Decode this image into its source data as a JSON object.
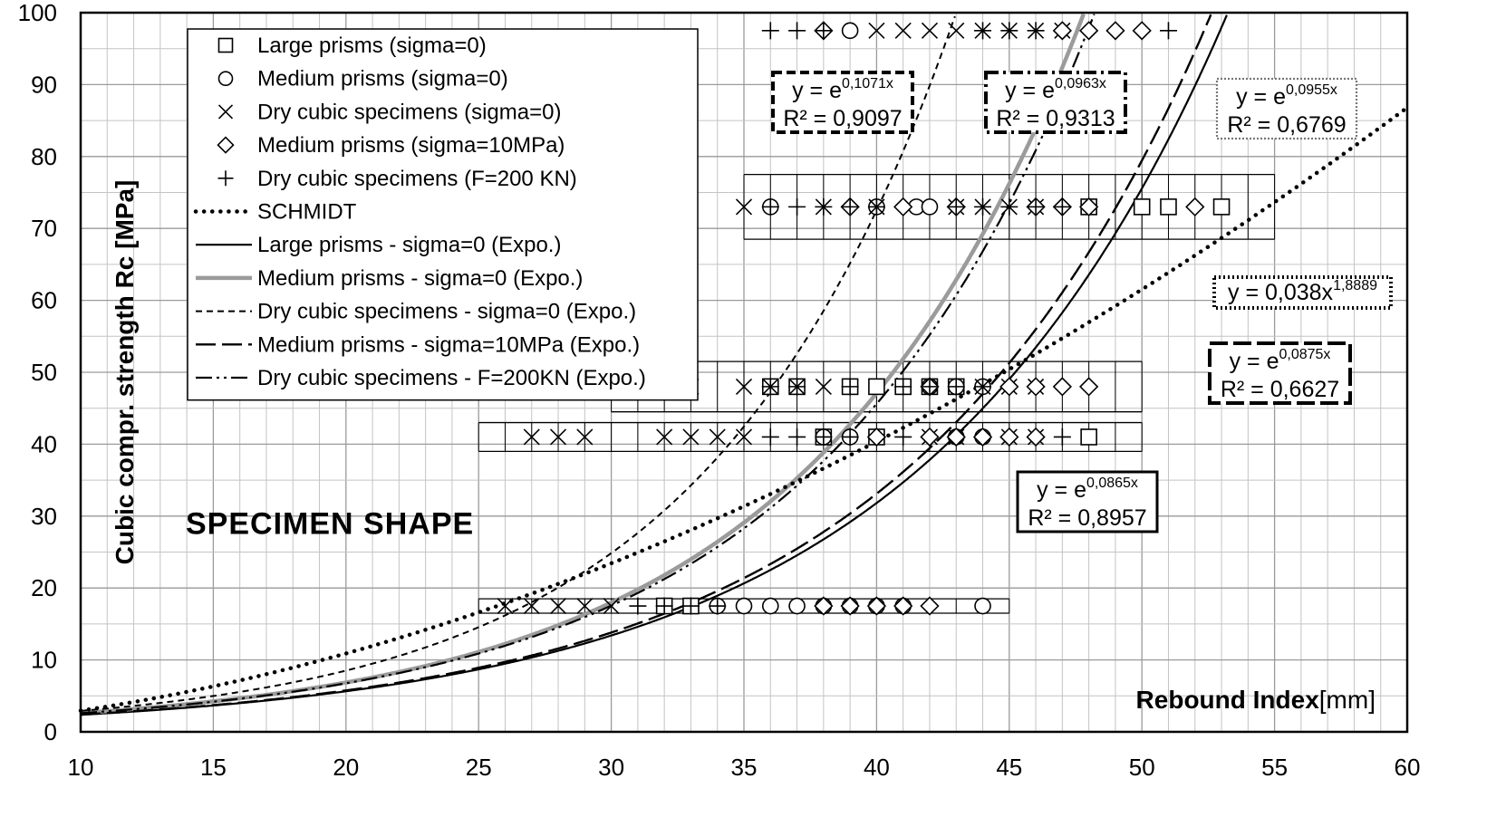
{
  "chart_data": {
    "type": "scatter",
    "title": "",
    "annotation_label": "SPECIMEN  SHAPE",
    "xlabel_bold": "Rebound Index",
    "xlabel_unit": "[mm]",
    "ylabel": "Cubic compr. strength Rc [MPa]",
    "xlim": [
      10,
      60
    ],
    "ylim": [
      0,
      100
    ],
    "x_ticks": [
      10,
      15,
      20,
      25,
      30,
      35,
      40,
      45,
      50,
      55,
      60
    ],
    "y_ticks": [
      0,
      10,
      20,
      30,
      40,
      50,
      60,
      70,
      80,
      90,
      100
    ],
    "x_minor_step": 1,
    "y_minor_step": 5,
    "grid": true,
    "legend_position": "top-left",
    "legend": [
      {
        "label": "Large prisms (sigma=0)",
        "kind": "marker",
        "marker": "square"
      },
      {
        "label": "Medium prisms (sigma=0)",
        "kind": "marker",
        "marker": "circle"
      },
      {
        "label": "Dry cubic specimens (sigma=0)",
        "kind": "marker",
        "marker": "x"
      },
      {
        "label": "Medium prisms (sigma=10MPa)",
        "kind": "marker",
        "marker": "diamond"
      },
      {
        "label": "Dry cubic specimens (F=200 KN)",
        "kind": "marker",
        "marker": "plus"
      },
      {
        "label": "SCHMIDT",
        "kind": "line",
        "style": "dotted"
      },
      {
        "label": "Large prisms - sigma=0 (Expo.)",
        "kind": "line",
        "style": "solid"
      },
      {
        "label": "Medium prisms - sigma=0 (Expo.)",
        "kind": "line",
        "style": "gray"
      },
      {
        "label": "Dry cubic specimens - sigma=0 (Expo.)",
        "kind": "line",
        "style": "short-dash"
      },
      {
        "label": "Medium prisms - sigma=10MPa (Expo.)",
        "kind": "line",
        "style": "long-dash"
      },
      {
        "label": "Dry cubic specimens - F=200KN (Expo.)",
        "kind": "line",
        "style": "dash-dot-dot"
      }
    ],
    "fits": [
      {
        "series": "Large prisms - sigma=0 (Expo.)",
        "kind": "exp",
        "k": 0.0865,
        "style": "solid"
      },
      {
        "series": "Medium prisms - sigma=0 (Expo.)",
        "kind": "exp",
        "k": 0.0963,
        "style": "gray"
      },
      {
        "series": "Dry cubic specimens - sigma=0 (Expo.)",
        "kind": "exp",
        "k": 0.1071,
        "style": "short-dash"
      },
      {
        "series": "Medium prisms - sigma=10MPa (Expo.)",
        "kind": "exp",
        "k": 0.0875,
        "style": "long-dash"
      },
      {
        "series": "Dry cubic specimens - F=200KN (Expo.)",
        "kind": "exp",
        "k": 0.0955,
        "style": "dash-dot-dot"
      },
      {
        "series": "SCHMIDT",
        "kind": "power",
        "a": 0.038,
        "b": 1.8889,
        "style": "dotted"
      }
    ],
    "equation_boxes": [
      {
        "base": "y = e",
        "exp": "0,1071x",
        "r2": "R² = 0,9097",
        "border": "dashed-heavy"
      },
      {
        "base": "y = e",
        "exp": "0,0963x",
        "r2": "R² = 0,9313",
        "border": "dashdot-heavy"
      },
      {
        "base": "y = e",
        "exp": "0,0955x",
        "r2": "R² = 0,6769",
        "border": "dotted-gray"
      },
      {
        "base": "y = 0,038x",
        "exp": "1,8889",
        "r2": "",
        "border": "dotted-heavy"
      },
      {
        "base": "y = e",
        "exp": "0,0875x",
        "r2": "R² = 0,6627",
        "border": "longdash-heavy"
      },
      {
        "base": "y = e",
        "exp": "0,0865x",
        "r2": "R² = 0,8957",
        "border": "solid"
      }
    ],
    "bands": [
      {
        "y": 17.5,
        "x_range": [
          25,
          45
        ],
        "half_height": 1
      },
      {
        "y": 41,
        "x_range": [
          25,
          50
        ],
        "half_height": 2
      },
      {
        "y": 48,
        "x_range": [
          30,
          50
        ],
        "half_height": 3.5
      },
      {
        "y": 73,
        "x_range": [
          35,
          55
        ],
        "half_height": 4.5
      }
    ],
    "series": [
      {
        "name": "Large prisms (sigma=0)",
        "marker": "square",
        "points": [
          [
            32,
            17.5
          ],
          [
            33,
            17.5
          ],
          [
            38,
            41
          ],
          [
            40,
            41
          ],
          [
            48,
            41
          ],
          [
            36,
            48
          ],
          [
            37,
            48
          ],
          [
            39,
            48
          ],
          [
            40,
            48
          ],
          [
            41,
            48
          ],
          [
            42,
            48
          ],
          [
            43,
            48
          ],
          [
            48,
            73
          ],
          [
            50,
            73
          ],
          [
            51,
            73
          ],
          [
            53,
            73
          ]
        ]
      },
      {
        "name": "Medium prisms (sigma=0)",
        "marker": "circle",
        "points": [
          [
            34,
            17.5
          ],
          [
            35,
            17.5
          ],
          [
            36,
            17.5
          ],
          [
            37,
            17.5
          ],
          [
            38,
            17.5
          ],
          [
            39,
            17.5
          ],
          [
            40,
            17.5
          ],
          [
            41,
            17.5
          ],
          [
            44,
            17.5
          ],
          [
            38,
            41
          ],
          [
            39,
            41
          ],
          [
            43,
            41
          ],
          [
            44,
            41
          ],
          [
            42,
            48
          ],
          [
            43,
            48
          ],
          [
            44,
            48
          ],
          [
            36,
            73
          ],
          [
            40,
            73
          ],
          [
            41.5,
            73
          ],
          [
            42,
            73
          ],
          [
            39,
            97.5
          ]
        ]
      },
      {
        "name": "Dry cubic specimens (sigma=0)",
        "marker": "x",
        "points": [
          [
            26,
            17.5
          ],
          [
            27,
            17.5
          ],
          [
            28,
            17.5
          ],
          [
            29,
            17.5
          ],
          [
            30,
            17.5
          ],
          [
            27,
            41
          ],
          [
            28,
            41
          ],
          [
            29,
            41
          ],
          [
            32,
            41
          ],
          [
            33,
            41
          ],
          [
            34,
            41
          ],
          [
            35,
            41
          ],
          [
            33,
            48
          ],
          [
            35,
            48
          ],
          [
            36,
            48
          ],
          [
            37,
            48
          ],
          [
            38,
            48
          ],
          [
            42,
            41
          ],
          [
            43,
            41
          ],
          [
            45,
            41
          ],
          [
            46,
            41
          ],
          [
            44,
            48
          ],
          [
            45,
            48
          ],
          [
            46,
            48
          ],
          [
            35,
            73
          ],
          [
            38,
            73
          ],
          [
            40,
            73
          ],
          [
            43,
            73
          ],
          [
            44,
            73
          ],
          [
            45,
            73
          ],
          [
            46,
            73
          ],
          [
            40,
            97.5
          ],
          [
            41,
            97.5
          ],
          [
            42,
            97.5
          ],
          [
            43,
            97.5
          ],
          [
            44,
            97.5
          ],
          [
            45,
            97.5
          ],
          [
            46,
            97.5
          ],
          [
            47,
            97.5
          ]
        ]
      },
      {
        "name": "Medium prisms (sigma=10MPa)",
        "marker": "diamond",
        "points": [
          [
            38,
            17.5
          ],
          [
            39,
            17.5
          ],
          [
            40,
            17.5
          ],
          [
            41,
            17.5
          ],
          [
            42,
            17.5
          ],
          [
            40,
            41
          ],
          [
            42,
            41
          ],
          [
            43,
            41
          ],
          [
            44,
            41
          ],
          [
            45,
            41
          ],
          [
            46,
            41
          ],
          [
            42,
            48
          ],
          [
            45,
            48
          ],
          [
            46,
            48
          ],
          [
            47,
            48
          ],
          [
            48,
            48
          ],
          [
            39,
            73
          ],
          [
            41,
            73
          ],
          [
            43,
            73
          ],
          [
            46,
            73
          ],
          [
            47,
            73
          ],
          [
            48,
            73
          ],
          [
            52,
            73
          ],
          [
            38,
            97.5
          ],
          [
            47,
            97.5
          ],
          [
            48,
            97.5
          ],
          [
            49,
            97.5
          ],
          [
            50,
            97.5
          ]
        ]
      },
      {
        "name": "Dry cubic specimens (F=200 KN)",
        "marker": "plus",
        "points": [
          [
            31,
            17.5
          ],
          [
            32,
            17.5
          ],
          [
            33,
            17.5
          ],
          [
            34,
            17.5
          ],
          [
            36,
            41
          ],
          [
            37,
            41
          ],
          [
            38,
            41
          ],
          [
            39,
            41
          ],
          [
            41,
            41
          ],
          [
            47,
            41
          ],
          [
            36,
            48
          ],
          [
            37,
            48
          ],
          [
            39,
            48
          ],
          [
            41,
            48
          ],
          [
            42,
            48
          ],
          [
            43,
            48
          ],
          [
            44,
            48
          ],
          [
            36,
            73
          ],
          [
            37,
            73
          ],
          [
            38,
            73
          ],
          [
            39,
            73
          ],
          [
            40,
            73
          ],
          [
            43,
            73
          ],
          [
            44,
            73
          ],
          [
            45,
            73
          ],
          [
            46,
            73
          ],
          [
            47,
            73
          ],
          [
            36,
            97.5
          ],
          [
            37,
            97.5
          ],
          [
            38,
            97.5
          ],
          [
            44,
            97.5
          ],
          [
            45,
            97.5
          ],
          [
            46,
            97.5
          ],
          [
            51,
            97.5
          ]
        ]
      }
    ]
  }
}
